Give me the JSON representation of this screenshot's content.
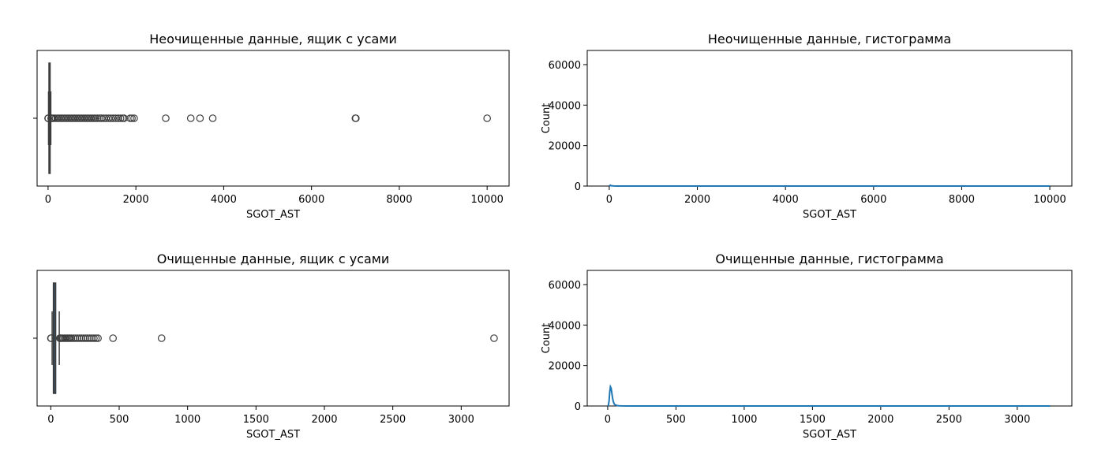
{
  "chart_data": [
    {
      "type": "box",
      "title": "Неочищенные данные, ящик с усами",
      "xlabel": "SGOT_AST",
      "ylabel": "",
      "xlim": [
        -250,
        10500
      ],
      "xticks": [
        0,
        2000,
        4000,
        6000,
        8000,
        10000
      ],
      "tick_labels": [
        "0",
        "2000",
        "4000",
        "6000",
        "8000",
        "10000"
      ],
      "box": {
        "q1": 20,
        "median": 26,
        "q3": 37,
        "whisker_low": 10,
        "whisker_high": 63
      },
      "outliers": [
        10000,
        7010,
        7000,
        3750,
        3460,
        3250,
        2680,
        1960,
        1910,
        1870,
        1730,
        1700,
        1650,
        1600,
        1540,
        1480,
        1430,
        1380,
        1320,
        1270,
        1220,
        1180,
        1130,
        1090,
        1050,
        1010,
        970,
        930,
        890,
        850,
        810,
        770,
        730,
        690,
        650,
        610,
        570,
        530,
        490,
        450,
        410,
        370,
        330,
        290,
        250,
        210,
        170,
        130,
        100,
        80,
        70,
        5,
        2,
        1
      ],
      "color": "#1f77b4"
    },
    {
      "type": "line",
      "title": "Неочищенные данные, гистограмма",
      "xlabel": "SGOT_AST",
      "ylabel": "Count",
      "xlim": [
        -500,
        10500
      ],
      "ylim": [
        0,
        67000
      ],
      "xticks": [
        0,
        2000,
        4000,
        6000,
        8000,
        10000
      ],
      "xtick_labels": [
        "0",
        "2000",
        "4000",
        "6000",
        "8000",
        "10000"
      ],
      "yticks": [
        0,
        20000,
        40000,
        60000
      ],
      "ytick_labels": [
        "0",
        "20000",
        "40000",
        "60000"
      ],
      "x": [
        0,
        25,
        50,
        100,
        200,
        500,
        1000,
        2000,
        4000,
        6000,
        8000,
        10000
      ],
      "values": [
        0,
        420,
        150,
        40,
        10,
        3,
        1,
        0,
        0,
        0,
        0,
        0
      ],
      "color": "#1f77b4"
    },
    {
      "type": "box",
      "title": "Очищенные данные, ящик с усами",
      "xlabel": "SGOT_AST",
      "ylabel": "",
      "xlim": [
        -100,
        3350
      ],
      "xticks": [
        0,
        500,
        1000,
        1500,
        2000,
        2500,
        3000
      ],
      "tick_labels": [
        "0",
        "500",
        "1000",
        "1500",
        "2000",
        "2500",
        "3000"
      ],
      "box": {
        "q1": 19,
        "median": 25,
        "q3": 36,
        "whisker_low": 10,
        "whisker_high": 62
      },
      "outliers": [
        3240,
        810,
        455,
        345,
        330,
        315,
        300,
        285,
        270,
        255,
        240,
        225,
        210,
        195,
        180,
        165,
        150,
        140,
        130,
        120,
        110,
        100,
        90,
        80,
        72,
        66,
        3,
        1
      ],
      "color": "#1f77b4"
    },
    {
      "type": "line",
      "title": "Очищенные данные, гистограмма",
      "xlabel": "SGOT_AST",
      "ylabel": "Count",
      "xlim": [
        -150,
        3400
      ],
      "ylim": [
        0,
        67000
      ],
      "xticks": [
        0,
        500,
        1000,
        1500,
        2000,
        2500,
        3000
      ],
      "xtick_labels": [
        "0",
        "500",
        "1000",
        "1500",
        "2000",
        "2500",
        "3000"
      ],
      "yticks": [
        0,
        20000,
        40000,
        60000
      ],
      "ytick_labels": [
        "0",
        "20000",
        "40000",
        "60000"
      ],
      "x": [
        0,
        5,
        10,
        15,
        20,
        25,
        30,
        35,
        40,
        45,
        50,
        60,
        70,
        80,
        100,
        150,
        300,
        1000,
        3240
      ],
      "values": [
        0,
        300,
        2500,
        7000,
        9500,
        8800,
        6500,
        4200,
        2500,
        1400,
        800,
        400,
        200,
        100,
        50,
        20,
        5,
        1,
        0
      ],
      "color": "#1f77b4"
    }
  ]
}
